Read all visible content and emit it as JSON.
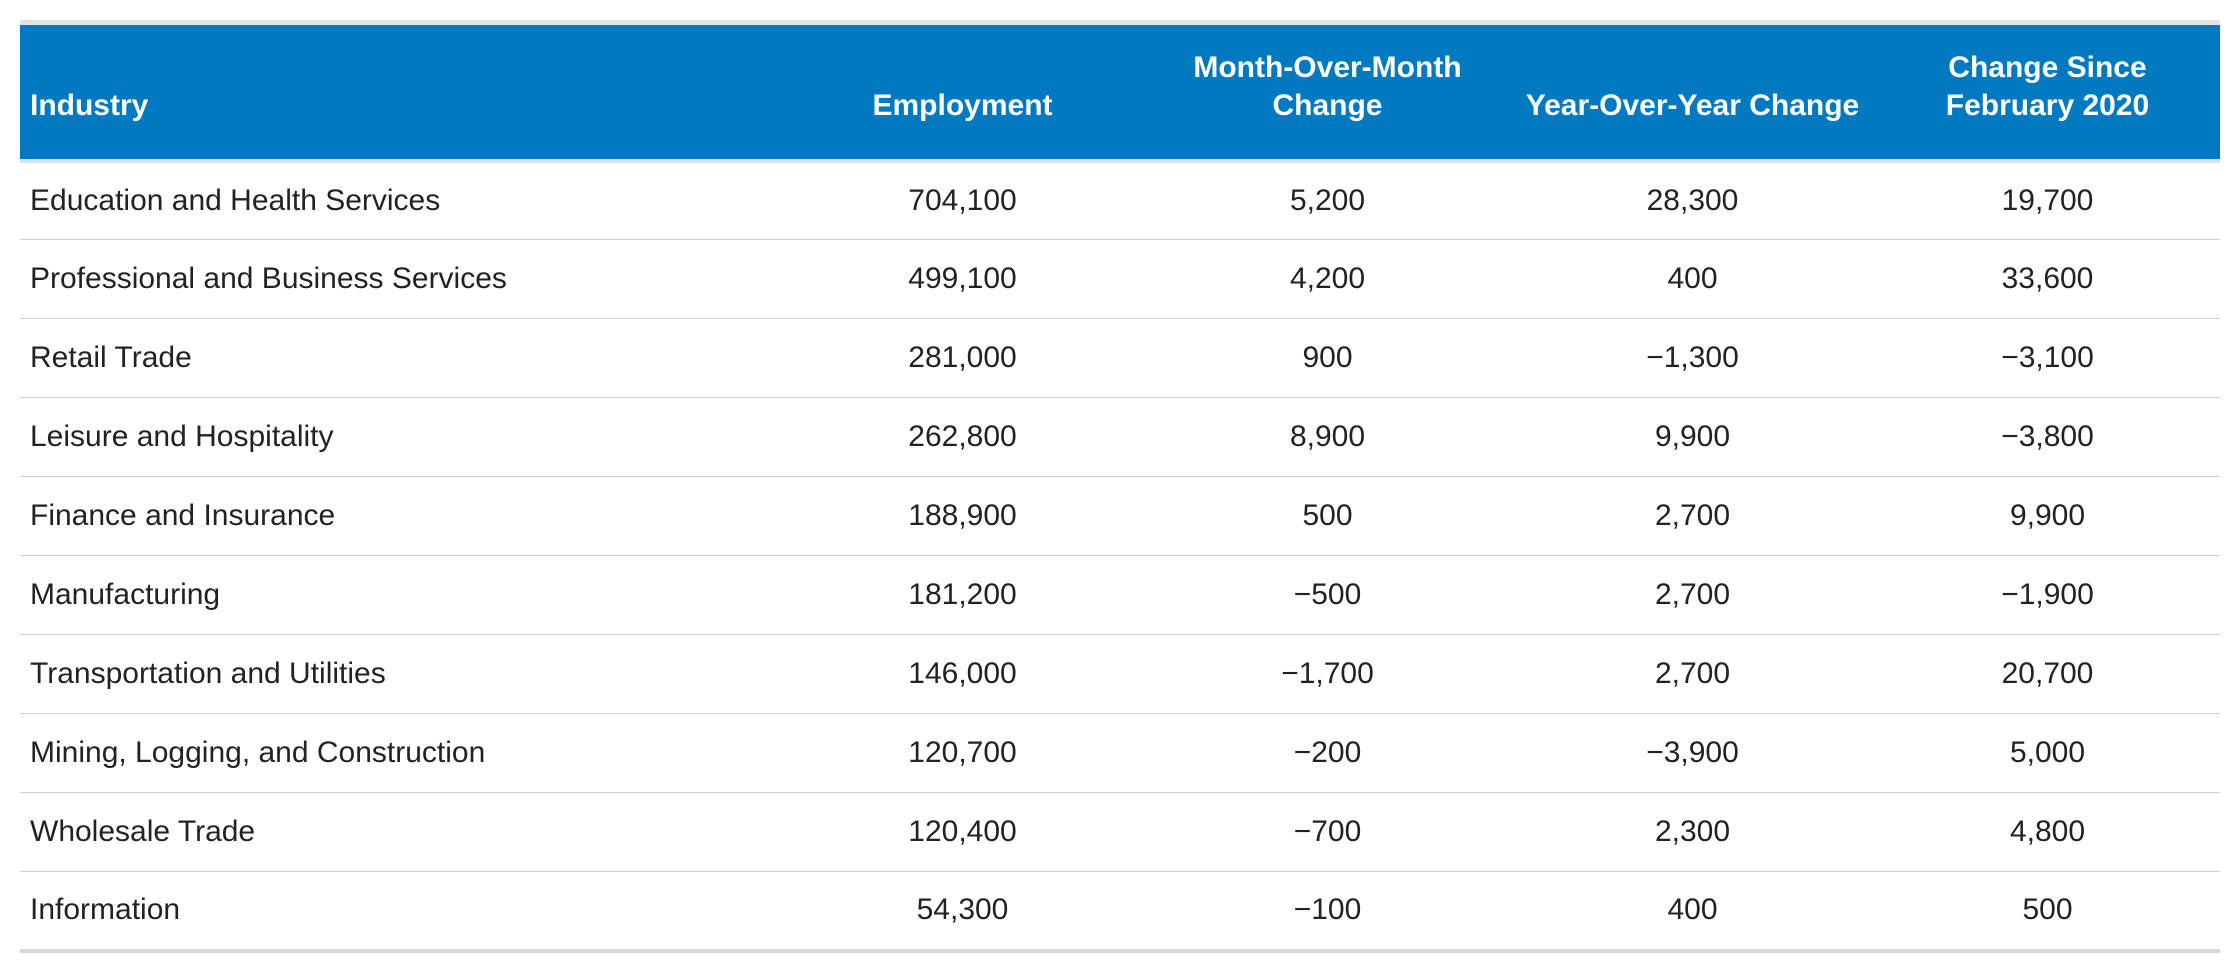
{
  "chart_data": {
    "type": "table",
    "columns": [
      "Industry",
      "Employment",
      "Month-Over-Month Change",
      "Year-Over-Year Change",
      "Change Since February 2020"
    ],
    "rows": [
      [
        "Education and Health Services",
        "704,100",
        "5,200",
        "28,300",
        "19,700"
      ],
      [
        "Professional and Business Services",
        "499,100",
        "4,200",
        "400",
        "33,600"
      ],
      [
        "Retail Trade",
        "281,000",
        "900",
        "−1,300",
        "−3,100"
      ],
      [
        "Leisure and Hospitality",
        "262,800",
        "8,900",
        "9,900",
        "−3,800"
      ],
      [
        "Finance and Insurance",
        "188,900",
        "500",
        "2,700",
        "9,900"
      ],
      [
        "Manufacturing",
        "181,200",
        "−500",
        "2,700",
        "−1,900"
      ],
      [
        "Transportation and Utilities",
        "146,000",
        "−1,700",
        "2,700",
        "20,700"
      ],
      [
        "Mining, Logging, and Construction",
        "120,700",
        "−200",
        "−3,900",
        "5,000"
      ],
      [
        "Wholesale Trade",
        "120,400",
        "−700",
        "2,300",
        "4,800"
      ],
      [
        "Information",
        "54,300",
        "−100",
        "400",
        "500"
      ]
    ],
    "colors": {
      "header_background": "#0079c1",
      "header_text": "#ffffff"
    }
  }
}
